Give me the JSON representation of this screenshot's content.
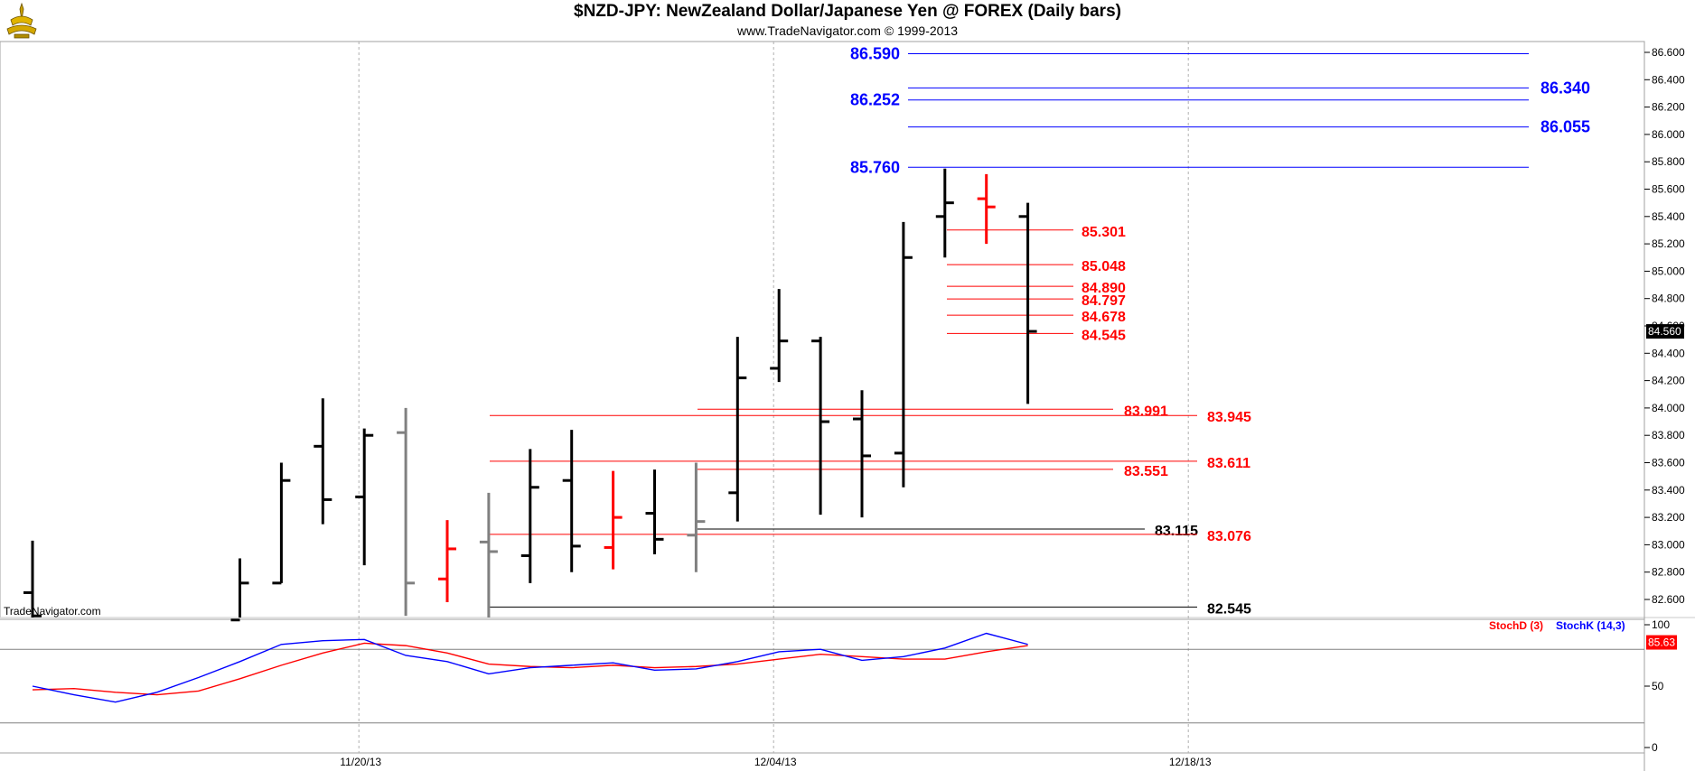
{
  "header": {
    "title": "$NZD-JPY:  NewZealand Dollar/Japanese Yen @ FOREX  (Daily bars)",
    "subtitle": "www.TradeNavigator.com © 1999-2013",
    "watermark": "TradeNavigator.com"
  },
  "chart_data": [
    {
      "type": "ohlc",
      "ylim": [
        82.45,
        86.72
      ],
      "yticks": [
        "82.600",
        "82.800",
        "83.000",
        "83.200",
        "83.400",
        "83.600",
        "83.800",
        "84.000",
        "84.200",
        "84.400",
        "84.600",
        "84.800",
        "85.000",
        "85.200",
        "85.400",
        "85.600",
        "85.800",
        "86.000",
        "86.200",
        "86.400",
        "86.600"
      ],
      "xticks": [
        {
          "label": "11/20/13",
          "index": 8
        },
        {
          "label": "12/04/13",
          "index": 18
        },
        {
          "label": "12/18/13",
          "index": 28
        }
      ],
      "last_price": "84.560",
      "bars": [
        {
          "i": 0,
          "o": 82.65,
          "h": 83.03,
          "l": 82.45,
          "c": 82.48,
          "color": "#000000"
        },
        {
          "i": 5,
          "o": 82.45,
          "h": 82.9,
          "l": 82.45,
          "c": 82.72,
          "color": "#000000"
        },
        {
          "i": 6,
          "o": 82.72,
          "h": 83.6,
          "l": 82.72,
          "c": 83.47,
          "color": "#000000"
        },
        {
          "i": 7,
          "o": 83.72,
          "h": 84.07,
          "l": 83.15,
          "c": 83.33,
          "color": "#000000"
        },
        {
          "i": 8,
          "o": 83.35,
          "h": 83.85,
          "l": 82.85,
          "c": 83.8,
          "color": "#000000"
        },
        {
          "i": 9,
          "o": 83.82,
          "h": 84.0,
          "l": 82.48,
          "c": 82.72,
          "color": "#808080"
        },
        {
          "i": 10,
          "o": 82.75,
          "h": 83.18,
          "l": 82.58,
          "c": 82.97,
          "color": "#ff0000"
        },
        {
          "i": 11,
          "o": 83.02,
          "h": 83.38,
          "l": 82.45,
          "c": 82.95,
          "color": "#808080"
        },
        {
          "i": 12,
          "o": 82.92,
          "h": 83.7,
          "l": 82.72,
          "c": 83.42,
          "color": "#000000"
        },
        {
          "i": 13,
          "o": 83.47,
          "h": 83.84,
          "l": 82.8,
          "c": 82.99,
          "color": "#000000"
        },
        {
          "i": 14,
          "o": 82.98,
          "h": 83.54,
          "l": 82.82,
          "c": 83.2,
          "color": "#ff0000"
        },
        {
          "i": 15,
          "o": 83.23,
          "h": 83.55,
          "l": 82.93,
          "c": 83.04,
          "color": "#000000"
        },
        {
          "i": 16,
          "o": 83.07,
          "h": 83.6,
          "l": 82.8,
          "c": 83.17,
          "color": "#808080"
        },
        {
          "i": 17,
          "o": 83.38,
          "h": 84.52,
          "l": 83.17,
          "c": 84.22,
          "color": "#000000"
        },
        {
          "i": 18,
          "o": 84.29,
          "h": 84.87,
          "l": 84.19,
          "c": 84.49,
          "color": "#000000"
        },
        {
          "i": 19,
          "o": 84.49,
          "h": 84.52,
          "l": 83.22,
          "c": 83.9,
          "color": "#000000"
        },
        {
          "i": 20,
          "o": 83.92,
          "h": 84.13,
          "l": 83.2,
          "c": 83.65,
          "color": "#000000"
        },
        {
          "i": 21,
          "o": 83.67,
          "h": 85.36,
          "l": 83.42,
          "c": 85.1,
          "color": "#000000"
        },
        {
          "i": 22,
          "o": 85.4,
          "h": 85.75,
          "l": 85.1,
          "c": 85.5,
          "color": "#000000"
        },
        {
          "i": 23,
          "o": 85.53,
          "h": 85.71,
          "l": 85.2,
          "c": 85.47,
          "color": "#ff0000"
        },
        {
          "i": 24,
          "o": 85.4,
          "h": 85.5,
          "l": 84.03,
          "c": 84.56,
          "color": "#000000"
        }
      ],
      "levels": [
        {
          "value": 86.59,
          "label": "86.590",
          "color": "#0000ff",
          "side": "left"
        },
        {
          "value": 86.34,
          "label": "86.340",
          "color": "#0000ff",
          "side": "right"
        },
        {
          "value": 86.252,
          "label": "86.252",
          "color": "#0000ff",
          "side": "left"
        },
        {
          "value": 86.055,
          "label": "86.055",
          "color": "#0000ff",
          "side": "right"
        },
        {
          "value": 85.76,
          "label": "85.760",
          "color": "#0000ff",
          "side": "left"
        },
        {
          "value": 85.301,
          "label": "85.301",
          "color": "#ff0000",
          "side": "right"
        },
        {
          "value": 85.048,
          "label": "85.048",
          "color": "#ff0000",
          "side": "right"
        },
        {
          "value": 84.89,
          "label": "84.890",
          "color": "#ff0000",
          "side": "right"
        },
        {
          "value": 84.797,
          "label": "84.797",
          "color": "#ff0000",
          "side": "right"
        },
        {
          "value": 84.678,
          "label": "84.678",
          "color": "#ff0000",
          "side": "right"
        },
        {
          "value": 84.545,
          "label": "84.545",
          "color": "#ff0000",
          "side": "right"
        },
        {
          "value": 83.991,
          "label": "83.991",
          "color": "#ff0000",
          "side": "right"
        },
        {
          "value": 83.945,
          "label": "83.945",
          "color": "#ff0000",
          "side": "right"
        },
        {
          "value": 83.611,
          "label": "83.611",
          "color": "#ff0000",
          "side": "right"
        },
        {
          "value": 83.551,
          "label": "83.551",
          "color": "#ff0000",
          "side": "right"
        },
        {
          "value": 83.115,
          "label": "83.115",
          "color": "#000000",
          "side": "right"
        },
        {
          "value": 83.076,
          "label": "83.076",
          "color": "#ff0000",
          "side": "right"
        },
        {
          "value": 82.545,
          "label": "82.545",
          "color": "#000000",
          "side": "right"
        }
      ]
    },
    {
      "type": "line",
      "ylim": [
        0,
        100
      ],
      "yticks": [
        "0",
        "50",
        "100"
      ],
      "ref_lines": [
        80,
        20
      ],
      "last_value": "85.63",
      "x": [
        0,
        1,
        2,
        3,
        4,
        5,
        6,
        7,
        8,
        9,
        10,
        11,
        12,
        13,
        14,
        15,
        16,
        17,
        18,
        19,
        20,
        21,
        22,
        23,
        24
      ],
      "series": [
        {
          "name": "StochD (3)",
          "color": "#ff0000",
          "values": [
            47,
            48,
            45,
            43,
            46,
            56,
            67,
            77,
            85,
            83,
            77,
            68,
            66,
            65,
            67,
            65,
            66,
            68,
            72,
            76,
            74,
            72,
            72,
            78,
            83
          ]
        },
        {
          "name": "StochK (14,3)",
          "color": "#0000ff",
          "values": [
            50,
            43,
            37,
            45,
            57,
            70,
            84,
            87,
            88,
            75,
            70,
            60,
            65,
            67,
            69,
            63,
            64,
            70,
            78,
            80,
            71,
            74,
            81,
            93,
            84
          ]
        }
      ]
    }
  ]
}
